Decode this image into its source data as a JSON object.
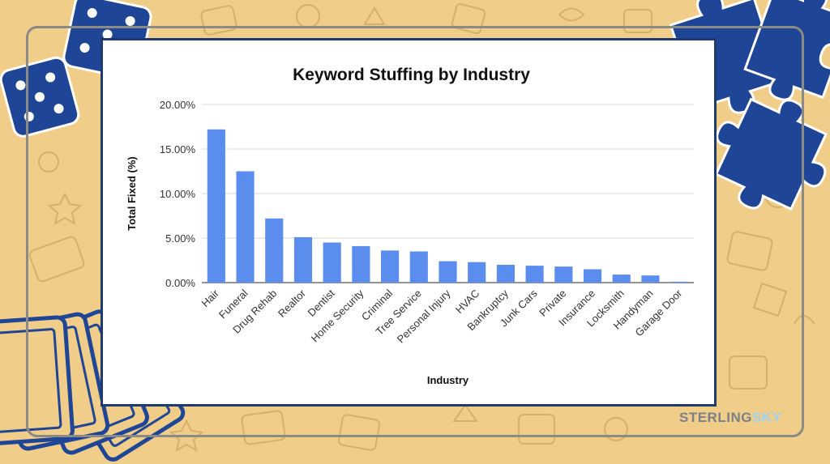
{
  "chart_data": {
    "type": "bar",
    "title": "Keyword Stuffing by Industry",
    "xlabel": "Industry",
    "ylabel": "Total Fixed (%)",
    "ylim": [
      0,
      20
    ],
    "yticks": [
      "0.00%",
      "5.00%",
      "10.00%",
      "15.00%",
      "20.00%"
    ],
    "grid": true,
    "bar_color": "#5B8DEF",
    "categories": [
      "Hair",
      "Funeral",
      "Drug Rehab",
      "Realtor",
      "Dentist",
      "Home Security",
      "Criminal",
      "Tree Service",
      "Personal Injury",
      "HVAC",
      "Bankruptcy",
      "Junk Cars",
      "Private",
      "Insurance",
      "Locksmith",
      "Handyman",
      "Garage Door"
    ],
    "values": [
      17.2,
      12.5,
      7.2,
      5.1,
      4.5,
      4.1,
      3.6,
      3.5,
      2.4,
      2.3,
      2.0,
      1.9,
      1.8,
      1.5,
      0.9,
      0.8,
      0.1
    ]
  },
  "brand": {
    "part1": "STERLING",
    "part2": "SKY"
  },
  "colors": {
    "background": "#F1CD8A",
    "frame": "#1E3A6E",
    "decor": "#1F4596",
    "pattern": "#d6b16a"
  }
}
